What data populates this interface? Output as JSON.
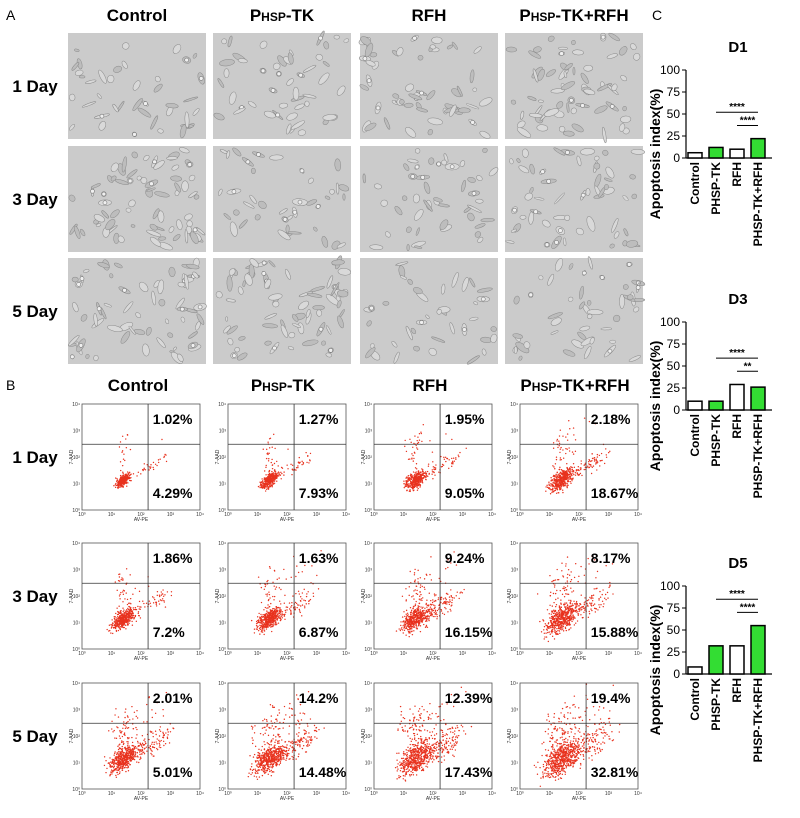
{
  "panel_labels": [
    "A",
    "B",
    "C"
  ],
  "columns": [
    [
      "Control"
    ],
    [
      "P",
      "HSP",
      "-TK"
    ],
    [
      "RFH"
    ],
    [
      "P",
      "HSP",
      "-TK+RFH"
    ]
  ],
  "rows": [
    "1 Day",
    "3 Day",
    "5 Day"
  ],
  "flow": {
    "x_label": "AV-PE",
    "y_label": "7-AAD",
    "ticks": [
      "10⁰",
      "10¹",
      "10²",
      "10³",
      "10⁴"
    ],
    "quadrants": [
      [
        [
          "1.02%",
          "4.29%"
        ],
        [
          "1.27%",
          "7.93%"
        ],
        [
          "1.95%",
          "9.05%"
        ],
        [
          "2.18%",
          "18.67%"
        ]
      ],
      [
        [
          "1.86%",
          "7.2%"
        ],
        [
          "1.63%",
          "6.87%"
        ],
        [
          "9.24%",
          "16.15%"
        ],
        [
          "8.17%",
          "15.88%"
        ]
      ],
      [
        [
          "2.01%",
          "5.01%"
        ],
        [
          "14.2%",
          "14.48%"
        ],
        [
          "12.39%",
          "17.43%"
        ],
        [
          "19.4%",
          "32.81%"
        ]
      ]
    ]
  },
  "chart_data": [
    {
      "type": "bar",
      "title": "D1",
      "y_label": "Apoptosis index(%)",
      "categories": [
        "Control",
        "PHSP-TK",
        "RFH",
        "PHSP-TK+RFH"
      ],
      "values": [
        6,
        12,
        10,
        22
      ],
      "colors": [
        "#ffffff",
        "#33dd33",
        "#ffffff",
        "#33dd33"
      ],
      "ylim": [
        0,
        100
      ],
      "yticks": [
        0,
        25,
        50,
        75,
        100
      ],
      "annotations": [
        {
          "text": "****",
          "pair": [
            "PHSP-TK",
            "PHSP-TK+RFH"
          ]
        },
        {
          "text": "****",
          "pair": [
            "RFH",
            "PHSP-TK+RFH"
          ]
        }
      ]
    },
    {
      "type": "bar",
      "title": "D3",
      "y_label": "Apoptosis index(%)",
      "categories": [
        "Control",
        "PHSP-TK",
        "RFH",
        "PHSP-TK+RFH"
      ],
      "values": [
        10,
        10,
        29,
        26
      ],
      "colors": [
        "#ffffff",
        "#33dd33",
        "#ffffff",
        "#33dd33"
      ],
      "ylim": [
        0,
        100
      ],
      "yticks": [
        0,
        25,
        50,
        75,
        100
      ],
      "annotations": [
        {
          "text": "****",
          "pair": [
            "PHSP-TK",
            "PHSP-TK+RFH"
          ]
        },
        {
          "text": "**",
          "pair": [
            "RFH",
            "PHSP-TK+RFH"
          ]
        }
      ]
    },
    {
      "type": "bar",
      "title": "D5",
      "y_label": "Apoptosis index(%)",
      "categories": [
        "Control",
        "PHSP-TK",
        "RFH",
        "PHSP-TK+RFH"
      ],
      "values": [
        8,
        32,
        32,
        55
      ],
      "colors": [
        "#ffffff",
        "#33dd33",
        "#ffffff",
        "#33dd33"
      ],
      "ylim": [
        0,
        100
      ],
      "yticks": [
        0,
        25,
        50,
        75,
        100
      ],
      "annotations": [
        {
          "text": "****",
          "pair": [
            "PHSP-TK",
            "PHSP-TK+RFH"
          ]
        },
        {
          "text": "****",
          "pair": [
            "RFH",
            "PHSP-TK+RFH"
          ]
        }
      ]
    }
  ]
}
